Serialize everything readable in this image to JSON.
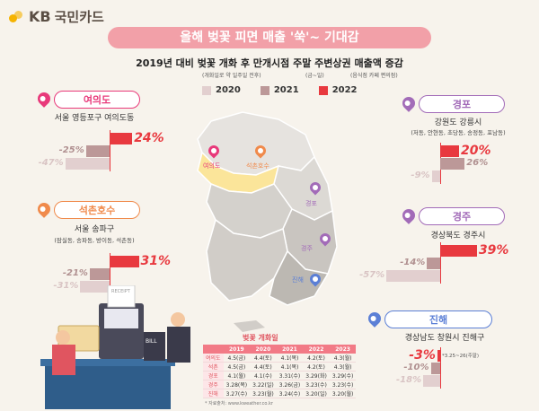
{
  "brand": {
    "logo_text": "KB",
    "logo_kr": "국민카드"
  },
  "header": {
    "title": "올해 벚꽃 피면 매출 '쑥'~ 기대감",
    "subtitle": "2019년 대비 벚꽃 개화 후 만개시점 주말 주변상권 매출액 증감",
    "note_1": "(개화일로 약 일주일 전후)",
    "note_2": "(금~일)",
    "note_3": "(음식점 카페 편의점)"
  },
  "colors": {
    "y2020": "#e2cfcf",
    "y2021": "#bc9898",
    "y2022": "#e8393f",
    "accent": "#f27a86"
  },
  "chart_data": {
    "type": "bar",
    "title": "2019년 대비 벚꽃 개화 후 만개시점 주말 주변상권 매출액 증감",
    "orientation": "horizontal",
    "unit": "%",
    "series_names": [
      "2020",
      "2021",
      "2022"
    ],
    "regions": [
      {
        "name": "여의도",
        "location": "서울 영등포구 여의도동",
        "sub": "",
        "values": [
          -47,
          -25,
          24
        ],
        "labels": [
          "-47%",
          "-25%",
          "24%"
        ],
        "color": "#e8397a"
      },
      {
        "name": "석촌호수",
        "location": "서울 송파구",
        "sub": "(잠실동, 송파동, 방이동, 석촌동)",
        "values": [
          -31,
          -21,
          31
        ],
        "labels": [
          "-31%",
          "-21%",
          "31%"
        ],
        "color": "#f08a4b"
      },
      {
        "name": "경포",
        "location": "강원도 강릉시",
        "sub": "(저동, 안현동, 초당동, 송정동, 포남동)",
        "values": [
          -9,
          26,
          20
        ],
        "labels": [
          "-9%",
          "26%",
          "20%"
        ],
        "color": "#a26bb8"
      },
      {
        "name": "경주",
        "location": "경상북도 경주시",
        "sub": "",
        "values": [
          -57,
          -14,
          39
        ],
        "labels": [
          "-57%",
          "-14%",
          "39%"
        ],
        "color": "#a26bb8"
      },
      {
        "name": "진해",
        "location": "경상남도 창원시 진해구",
        "sub": "",
        "values": [
          -18,
          -10,
          -3
        ],
        "labels": [
          "-18%",
          "-10%",
          "-3%"
        ],
        "note": "*3.25~26(주말)",
        "color": "#5b7fd6"
      }
    ]
  },
  "map_labels": [
    "여의도",
    "석촌호수",
    "경포",
    "경주",
    "진해"
  ],
  "bloom_table": {
    "title": "벚꽃 개화일",
    "headers": [
      "",
      "2019",
      "2020",
      "2021",
      "2022",
      "2023"
    ],
    "rows": [
      [
        "여의도",
        "4.5(금)",
        "4.4(토)",
        "4.1(목)",
        "4.2(토)",
        "4.3(월)"
      ],
      [
        "석촌",
        "4.5(금)",
        "4.4(토)",
        "4.1(목)",
        "4.2(토)",
        "4.3(월)"
      ],
      [
        "경포",
        "4.1(월)",
        "4.1(수)",
        "3.31(수)",
        "3.29(화)",
        "3.29(수)"
      ],
      [
        "경주",
        "3.28(목)",
        "3.22(일)",
        "3.26(금)",
        "3.23(수)",
        "3.23(수)"
      ],
      [
        "진해",
        "3.27(수)",
        "3.23(월)",
        "3.24(수)",
        "3.20(일)",
        "3.20(월)"
      ]
    ],
    "source": "* 자료출처: www.kweather.co.kr"
  },
  "illustration": {
    "bill_text": "BILL",
    "receipt_text": "RECEIPT"
  }
}
